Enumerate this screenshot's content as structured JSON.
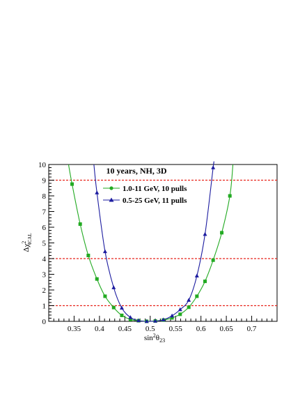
{
  "chart_data": {
    "type": "line",
    "title": "10 years, NH, 3D",
    "xlabel": {
      "main": "sin",
      "sup": "2",
      "mid": "θ",
      "sub": "23"
    },
    "ylabel": {
      "main": "Δχ",
      "sup": "2",
      "sub": "ICAL"
    },
    "xlim": [
      0.3,
      0.75
    ],
    "ylim": [
      0,
      10
    ],
    "x_ticks": [
      0.35,
      0.4,
      0.45,
      0.5,
      0.55,
      0.6,
      0.65,
      0.7
    ],
    "x_tick_labels": [
      "0.35",
      "0.4",
      "0.45",
      "0.5",
      "0.55",
      "0.6",
      "0.65",
      "0.7"
    ],
    "y_ticks": [
      0,
      1,
      2,
      3,
      4,
      5,
      6,
      7,
      8,
      9,
      10
    ],
    "y_tick_labels": [
      "0",
      "1",
      "2",
      "3",
      "4",
      "5",
      "6",
      "7",
      "8",
      "9",
      "10"
    ],
    "grid": false,
    "legend_position": "top-right",
    "reference_lines": [
      {
        "y": 1,
        "color": "#e8241c"
      },
      {
        "y": 4,
        "color": "#e8241c"
      },
      {
        "y": 9,
        "color": "#e8241c"
      }
    ],
    "series": [
      {
        "name": "1.0-11 GeV, 10 pulls",
        "color": "#22aa22",
        "marker": "square",
        "points": [
          [
            0.346,
            8.75
          ],
          [
            0.362,
            6.2
          ],
          [
            0.378,
            4.2
          ],
          [
            0.395,
            2.7
          ],
          [
            0.411,
            1.6
          ],
          [
            0.428,
            0.88
          ],
          [
            0.444,
            0.38
          ],
          [
            0.461,
            0.12
          ],
          [
            0.477,
            0.04
          ],
          [
            0.493,
            0.0
          ],
          [
            0.51,
            0.02
          ],
          [
            0.526,
            0.08
          ],
          [
            0.543,
            0.22
          ],
          [
            0.559,
            0.45
          ],
          [
            0.576,
            0.9
          ],
          [
            0.592,
            1.6
          ],
          [
            0.608,
            2.55
          ],
          [
            0.624,
            3.9
          ],
          [
            0.641,
            5.65
          ],
          [
            0.657,
            8.0
          ]
        ],
        "curve": [
          [
            0.339,
            10.0
          ],
          [
            0.346,
            8.75
          ],
          [
            0.362,
            6.2
          ],
          [
            0.378,
            4.2
          ],
          [
            0.395,
            2.7
          ],
          [
            0.411,
            1.6
          ],
          [
            0.428,
            0.88
          ],
          [
            0.444,
            0.38
          ],
          [
            0.461,
            0.12
          ],
          [
            0.477,
            0.04
          ],
          [
            0.493,
            0.0
          ],
          [
            0.51,
            0.02
          ],
          [
            0.526,
            0.08
          ],
          [
            0.543,
            0.22
          ],
          [
            0.559,
            0.45
          ],
          [
            0.576,
            0.9
          ],
          [
            0.592,
            1.6
          ],
          [
            0.608,
            2.55
          ],
          [
            0.624,
            3.9
          ],
          [
            0.641,
            5.65
          ],
          [
            0.657,
            8.0
          ],
          [
            0.663,
            10.0
          ]
        ]
      },
      {
        "name": "0.5-25 GeV, 11 pulls",
        "color": "#1c1ca0",
        "marker": "triangle",
        "points": [
          [
            0.395,
            8.2
          ],
          [
            0.411,
            4.45
          ],
          [
            0.428,
            2.15
          ],
          [
            0.444,
            0.85
          ],
          [
            0.461,
            0.25
          ],
          [
            0.477,
            0.05
          ],
          [
            0.493,
            0.0
          ],
          [
            0.51,
            0.02
          ],
          [
            0.526,
            0.1
          ],
          [
            0.543,
            0.35
          ],
          [
            0.559,
            0.75
          ],
          [
            0.576,
            1.35
          ],
          [
            0.592,
            2.9
          ],
          [
            0.608,
            5.55
          ],
          [
            0.624,
            9.8
          ]
        ],
        "curve": [
          [
            0.389,
            10.0
          ],
          [
            0.395,
            8.2
          ],
          [
            0.411,
            4.45
          ],
          [
            0.428,
            2.15
          ],
          [
            0.444,
            0.85
          ],
          [
            0.461,
            0.25
          ],
          [
            0.477,
            0.05
          ],
          [
            0.493,
            0.0
          ],
          [
            0.51,
            0.02
          ],
          [
            0.526,
            0.1
          ],
          [
            0.543,
            0.35
          ],
          [
            0.559,
            0.75
          ],
          [
            0.576,
            1.35
          ],
          [
            0.592,
            2.9
          ],
          [
            0.608,
            5.55
          ],
          [
            0.624,
            9.8
          ],
          [
            0.625,
            10.0
          ]
        ]
      }
    ]
  }
}
